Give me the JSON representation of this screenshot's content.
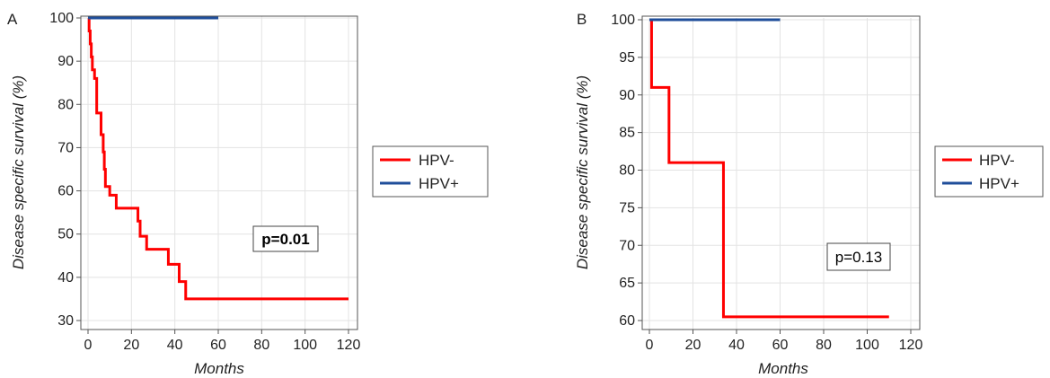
{
  "chart_data": [
    {
      "type": "line",
      "panel": "A",
      "xlabel": "Months",
      "ylabel": "Disease specific survival (%)",
      "xlim": [
        0,
        120
      ],
      "ylim": [
        30,
        100
      ],
      "xticks": [
        "0",
        "20",
        "40",
        "60",
        "80",
        "100",
        "120"
      ],
      "yticks": [
        "30",
        "40",
        "50",
        "60",
        "70",
        "80",
        "90",
        "100"
      ],
      "grid": true,
      "legend": "right",
      "annotation": "p=0.01",
      "annotation_bold": true,
      "series": [
        {
          "name": "HPV-",
          "color": "#ff0000",
          "step": true,
          "x": [
            0,
            0.5,
            1,
            1.5,
            2,
            3,
            4,
            6,
            7,
            7.5,
            8,
            10,
            13,
            23,
            24,
            27,
            37,
            42,
            45,
            120
          ],
          "y": [
            100,
            97,
            94,
            91,
            88,
            86,
            78,
            73,
            69,
            65,
            61,
            59,
            56,
            53,
            49.5,
            46.5,
            43,
            39,
            35,
            35
          ]
        },
        {
          "name": "HPV+",
          "color": "#1f4e9a",
          "step": true,
          "x": [
            0,
            60
          ],
          "y": [
            100,
            100
          ]
        }
      ]
    },
    {
      "type": "line",
      "panel": "B",
      "xlabel": "Months",
      "ylabel": "Disease specific survival (%)",
      "xlim": [
        0,
        120
      ],
      "ylim": [
        60,
        100
      ],
      "xticks": [
        "0",
        "20",
        "40",
        "60",
        "80",
        "100",
        "120"
      ],
      "yticks": [
        "60",
        "65",
        "70",
        "75",
        "80",
        "85",
        "90",
        "95",
        "100"
      ],
      "grid": true,
      "legend": "right",
      "annotation": "p=0.13",
      "annotation_bold": false,
      "series": [
        {
          "name": "HPV-",
          "color": "#ff0000",
          "step": true,
          "x": [
            0,
            1,
            9,
            34,
            110
          ],
          "y": [
            100,
            91,
            81,
            60.5,
            60.5
          ]
        },
        {
          "name": "HPV+",
          "color": "#1f4e9a",
          "step": true,
          "x": [
            0,
            60
          ],
          "y": [
            100,
            100
          ]
        }
      ]
    }
  ]
}
